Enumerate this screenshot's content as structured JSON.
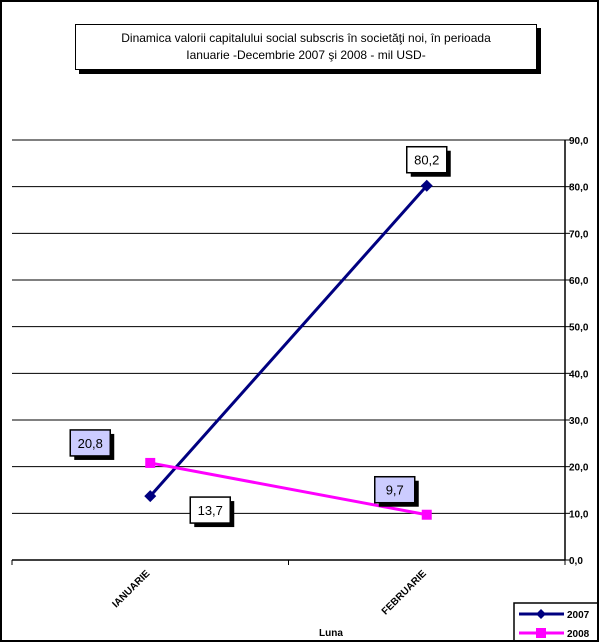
{
  "chart_data": {
    "type": "line",
    "title_lines": [
      "Dinamica  valorii capitalului social subscris în societăţi noi,  în perioada",
      "Ianuarie -Decembrie 2007 şi 2008  - mil  USD-"
    ],
    "categories": [
      "IANUARIE",
      "FEBRUARIE"
    ],
    "xlabel": "Luna",
    "ylabel": "",
    "ylim": [
      0,
      90
    ],
    "yticks": [
      "0,0",
      "10,0",
      "20,0",
      "30,0",
      "40,0",
      "50,0",
      "60,0",
      "70,0",
      "80,0",
      "90,0"
    ],
    "y_axis_side": "right",
    "grid": true,
    "legend_position": "bottom-right",
    "series": [
      {
        "name": "2007",
        "values": [
          13.7,
          80.2
        ],
        "labels": [
          "13,7",
          "80,2"
        ],
        "color": "#000080",
        "marker": "diamond"
      },
      {
        "name": "2008",
        "values": [
          20.8,
          9.7
        ],
        "labels": [
          "20,8",
          "9,7"
        ],
        "color": "#FF00FF",
        "marker": "square"
      }
    ]
  }
}
